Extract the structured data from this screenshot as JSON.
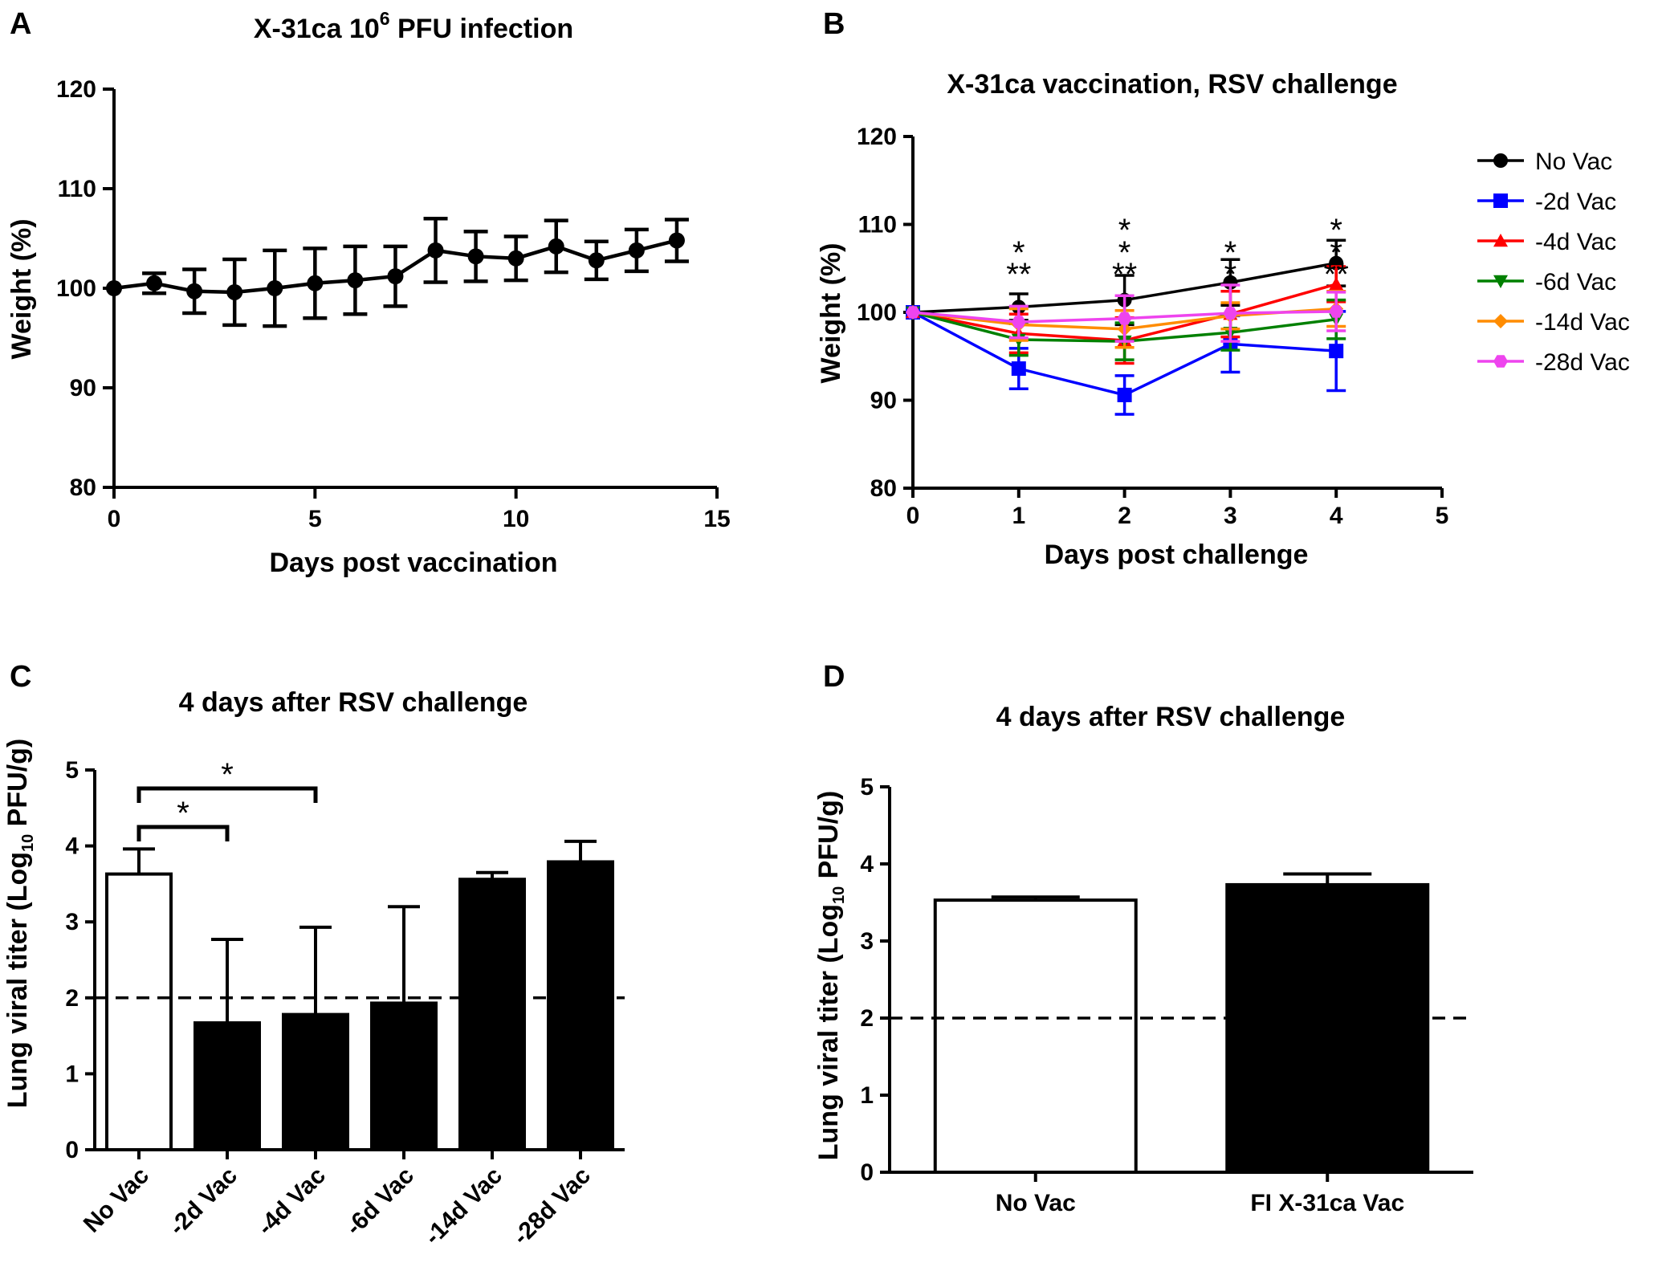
{
  "figure": {
    "panel_letters": [
      "A",
      "B",
      "C",
      "D"
    ],
    "colors": {
      "black": "#000000",
      "blue": "#0000ff",
      "red": "#ff0000",
      "green": "#008000",
      "orange": "#ff8c00",
      "pink": "#ee44ee"
    }
  },
  "chart_data": [
    {
      "panel": "A",
      "type": "line",
      "title": "X-31ca 10",
      "title_sup": "6",
      "title_suffix": " PFU infection",
      "xlabel": "Days post vaccination",
      "ylabel": "Weight (%)",
      "xlim": [
        0,
        15
      ],
      "ylim": [
        80,
        120
      ],
      "xticks": [
        0,
        5,
        10,
        15
      ],
      "yticks": [
        80,
        90,
        100,
        110,
        120
      ],
      "series": [
        {
          "name": "X-31ca",
          "color": "#000000",
          "x": [
            0,
            1,
            2,
            3,
            4,
            5,
            6,
            7,
            8,
            9,
            10,
            11,
            12,
            13,
            14
          ],
          "y": [
            100,
            100.5,
            99.7,
            99.6,
            100,
            100.5,
            100.8,
            101.2,
            103.8,
            103.2,
            103,
            104.2,
            102.8,
            103.8,
            104.8
          ],
          "err": [
            0,
            1,
            2.2,
            3.3,
            3.8,
            3.5,
            3.4,
            3.0,
            3.2,
            2.5,
            2.2,
            2.6,
            1.9,
            2.1,
            2.1
          ]
        }
      ]
    },
    {
      "panel": "B",
      "type": "line",
      "title": "X-31ca vaccination, RSV challenge",
      "xlabel": "Days post challenge",
      "ylabel": "Weight (%)",
      "xlim": [
        0,
        5
      ],
      "ylim": [
        80,
        120
      ],
      "xticks": [
        0,
        1,
        2,
        3,
        4,
        5
      ],
      "yticks": [
        80,
        90,
        100,
        110,
        120
      ],
      "legend": "right",
      "series": [
        {
          "name": "No Vac",
          "color": "#000000",
          "marker": "circle",
          "x": [
            0,
            1,
            2,
            3,
            4
          ],
          "y": [
            100,
            100.6,
            101.4,
            103.4,
            105.6
          ],
          "err": [
            0,
            1.5,
            2.8,
            2.6,
            2.6
          ]
        },
        {
          "name": "-2d Vac",
          "color": "#0000ff",
          "marker": "square",
          "x": [
            0,
            1,
            2,
            3,
            4
          ],
          "y": [
            100,
            93.6,
            90.6,
            96.4,
            95.6
          ],
          "err": [
            0,
            2.3,
            2.2,
            3.2,
            4.5
          ]
        },
        {
          "name": "-4d Vac",
          "color": "#ff0000",
          "marker": "triangle-up",
          "x": [
            0,
            1,
            2,
            3,
            4
          ],
          "y": [
            100,
            97.6,
            96.8,
            99.8,
            103.2
          ],
          "err": [
            0,
            2.2,
            2.6,
            2.6,
            2.0
          ]
        },
        {
          "name": "-6d Vac",
          "color": "#008000",
          "marker": "triangle-down",
          "x": [
            0,
            1,
            2,
            3,
            4
          ],
          "y": [
            100,
            96.9,
            96.7,
            97.7,
            99.2
          ],
          "err": [
            0,
            1.8,
            2.1,
            2.0,
            2.2
          ]
        },
        {
          "name": "-14d Vac",
          "color": "#ff8c00",
          "marker": "diamond",
          "x": [
            0,
            1,
            2,
            3,
            4
          ],
          "y": [
            100,
            98.6,
            98.1,
            99.6,
            100.4
          ],
          "err": [
            0,
            1.8,
            2.1,
            1.5,
            2.0
          ]
        },
        {
          "name": "-28d Vac",
          "color": "#ee44ee",
          "marker": "hexagon",
          "x": [
            0,
            1,
            2,
            3,
            4
          ],
          "y": [
            100,
            98.9,
            99.3,
            99.9,
            100.1
          ],
          "err": [
            0,
            1.8,
            2.6,
            3.2,
            2.2
          ]
        }
      ],
      "annotations": [
        {
          "x": 1,
          "level": 0,
          "text": "**",
          "color": "#0000ff"
        },
        {
          "x": 1,
          "level": 1,
          "text": "*",
          "color": "#008000"
        },
        {
          "x": 2,
          "level": 0,
          "text": "**",
          "color": "#0000ff"
        },
        {
          "x": 2,
          "level": 1,
          "text": "*",
          "color": "#ff0000"
        },
        {
          "x": 2,
          "level": 2,
          "text": "*",
          "color": "#008000"
        },
        {
          "x": 3,
          "level": 0,
          "text": "*",
          "color": "#0000ff"
        },
        {
          "x": 3,
          "level": 1,
          "text": "*",
          "color": "#008000"
        },
        {
          "x": 4,
          "level": 0,
          "text": "**",
          "color": "#0000ff"
        },
        {
          "x": 4,
          "level": 1,
          "text": "*",
          "color": "#008000"
        },
        {
          "x": 4,
          "level": 2,
          "text": "*",
          "color": "#ee44ee"
        }
      ]
    },
    {
      "panel": "C",
      "type": "bar",
      "title": "4 days after RSV challenge",
      "xlabel": "",
      "ylabel": "Lung viral titer (Log",
      "ylabel_sub": "10",
      "ylabel_suffix": " PFU/g)",
      "ylim": [
        0,
        5
      ],
      "yticks": [
        0,
        1,
        2,
        3,
        4,
        5
      ],
      "categories": [
        "No Vac",
        "-2d Vac",
        "-4d Vac",
        "-6d Vac",
        "-14d Vac",
        "-28d Vac"
      ],
      "values": [
        3.63,
        1.67,
        1.78,
        1.93,
        3.56,
        3.79
      ],
      "err": [
        0.33,
        1.1,
        1.15,
        1.27,
        0.09,
        0.27
      ],
      "fills": [
        "#ffffff",
        "#000000",
        "#000000",
        "#000000",
        "#000000",
        "#000000"
      ],
      "detection_limit": 2,
      "brackets": [
        {
          "from": 0,
          "to": 2,
          "text": "*"
        },
        {
          "from": 0,
          "to": 1,
          "text": "*"
        }
      ]
    },
    {
      "panel": "D",
      "type": "bar",
      "title": "4 days after RSV challenge",
      "xlabel": "",
      "ylabel": "Lung viral titer (Log",
      "ylabel_sub": "10",
      "ylabel_suffix": " PFU/g)",
      "ylim": [
        0,
        5
      ],
      "yticks": [
        0,
        1,
        2,
        3,
        4,
        5
      ],
      "categories": [
        "No Vac",
        "FI X-31ca Vac"
      ],
      "values": [
        3.53,
        3.73
      ],
      "err": [
        0.04,
        0.14
      ],
      "fills": [
        "#ffffff",
        "#000000"
      ],
      "detection_limit": 2
    }
  ]
}
